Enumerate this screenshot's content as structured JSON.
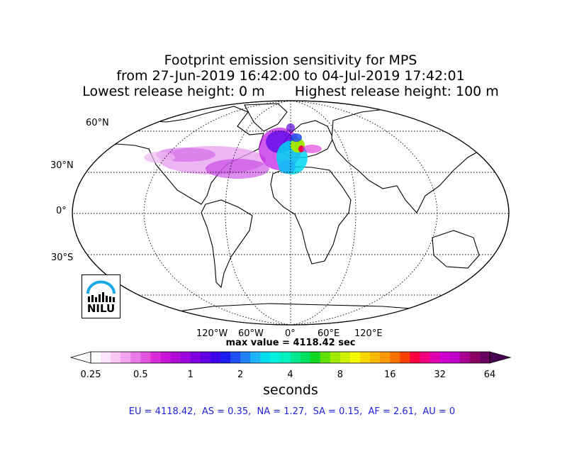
{
  "title": {
    "line1": "Footprint emission sensitivity for MPS",
    "line2": "from 27-Jun-2019 16:42:00 to 04-Jul-2019 17:42:01",
    "line3": "Lowest release height: 0 m       Highest release height: 100 m"
  },
  "map": {
    "projection": "Robinson",
    "lat_labels": [
      "60°N",
      "30°N",
      "0°",
      "30°S"
    ],
    "lon_labels": [
      "120°W",
      "60°W",
      "0°",
      "60°E",
      "120°E"
    ],
    "max_value_text": "max value = 4118.42 sec",
    "logo_text": "NILU"
  },
  "colorbar": {
    "tick_labels": [
      "0.25",
      "0.5",
      "1",
      "2",
      "4",
      "8",
      "16",
      "32",
      "64"
    ],
    "label": "seconds",
    "colors": [
      "#ffffff",
      "#fde6fb",
      "#f9c8f5",
      "#f3a3ef",
      "#ec7be8",
      "#e452e0",
      "#d92bd8",
      "#c714d6",
      "#b10dd9",
      "#9a06dc",
      "#8000e0",
      "#6200e4",
      "#4000e8",
      "#1e1eee",
      "#1e50f2",
      "#1e82f6",
      "#1eb4fa",
      "#00dcf0",
      "#00f0e0",
      "#00f0c0",
      "#00e890",
      "#00e060",
      "#10d820",
      "#60e000",
      "#a0e800",
      "#d0f000",
      "#f8f800",
      "#f8d800",
      "#f8b800",
      "#f89800",
      "#f87000",
      "#f84000",
      "#f80040",
      "#f00080",
      "#e000b0",
      "#d000d0",
      "#c000c8",
      "#a80090",
      "#8c0060",
      "#6a0060"
    ]
  },
  "totals_text": "EU = 4118.42,  AS = 0.35,  NA = 1.27,  SA = 0.15,  AF = 2.61,  AU = 0"
}
